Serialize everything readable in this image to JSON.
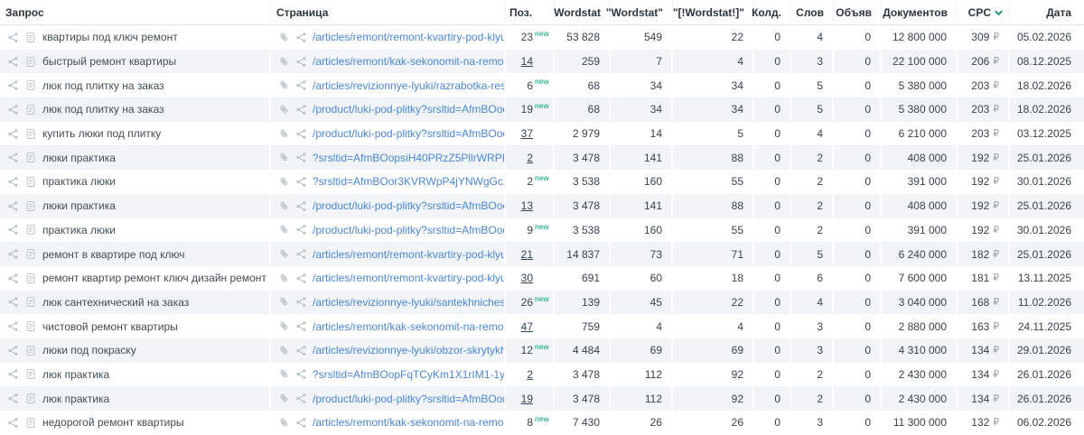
{
  "table": {
    "columns": {
      "query": "Запрос",
      "page": "Страница",
      "pos": "Поз.",
      "wordstat": "Wordstat",
      "wordstat_phrase": "\"Wordstat\"",
      "wordstat_exact": "\"[!Wordstat!]\"",
      "koldun": "Колд.",
      "words": "Слов",
      "ads": "Объяв",
      "documents": "Документов",
      "cpc": "CPC",
      "date": "Дата"
    },
    "sort": {
      "column": "cpc",
      "direction": "desc"
    },
    "new_badge_label": "new",
    "currency_symbol": "₽",
    "rows": [
      {
        "query": "квартиры под ключ ремонт",
        "page": "/articles/remont/remont-kvartiry-pod-klyu...",
        "pos": "23",
        "pos_state": "new",
        "wordstat": "53 828",
        "wordstat_phrase": "549",
        "wordstat_exact": "22",
        "koldun": "0",
        "words": "4",
        "ads": "0",
        "documents": "12 800 000",
        "cpc": "309",
        "date": "05.02.2026"
      },
      {
        "query": "быстрый ремонт квартиры",
        "page": "/articles/remont/kak-sekonomit-na-remo...",
        "pos": "14",
        "pos_state": "link",
        "wordstat": "259",
        "wordstat_phrase": "7",
        "wordstat_exact": "4",
        "koldun": "0",
        "words": "3",
        "ads": "0",
        "documents": "22 100 000",
        "cpc": "206",
        "date": "08.12.2025"
      },
      {
        "query": "люк под плитку на заказ",
        "page": "/articles/revizionnye-lyuki/razrabotka-res...",
        "pos": "6",
        "pos_state": "new",
        "wordstat": "68",
        "wordstat_phrase": "34",
        "wordstat_exact": "34",
        "koldun": "0",
        "words": "5",
        "ads": "0",
        "documents": "5 380 000",
        "cpc": "203",
        "date": "18.02.2026"
      },
      {
        "query": "люк под плитку на заказ",
        "page": "/product/luki-pod-plitky?srsltid=AfmBOoq...",
        "pos": "19",
        "pos_state": "new",
        "wordstat": "68",
        "wordstat_phrase": "34",
        "wordstat_exact": "34",
        "koldun": "0",
        "words": "5",
        "ads": "0",
        "documents": "5 380 000",
        "cpc": "203",
        "date": "18.02.2026"
      },
      {
        "query": "купить люки под плитку",
        "page": "/product/luki-pod-plitky?srsltid=AfmBOoc...",
        "pos": "37",
        "pos_state": "link",
        "wordstat": "2 979",
        "wordstat_phrase": "14",
        "wordstat_exact": "5",
        "koldun": "0",
        "words": "4",
        "ads": "0",
        "documents": "6 210 000",
        "cpc": "203",
        "date": "03.12.2025"
      },
      {
        "query": "люки практика",
        "page": "?srsltid=AfmBOopsiH40PRzZ5PllrWRPBV...",
        "pos": "2",
        "pos_state": "link",
        "wordstat": "3 478",
        "wordstat_phrase": "141",
        "wordstat_exact": "88",
        "koldun": "0",
        "words": "2",
        "ads": "0",
        "documents": "408 000",
        "cpc": "192",
        "date": "25.01.2026"
      },
      {
        "query": "практика люки",
        "page": "?srsltid=AfmBOor3KVRWpP4jYNWgGcXB...",
        "pos": "2",
        "pos_state": "new",
        "wordstat": "3 538",
        "wordstat_phrase": "160",
        "wordstat_exact": "55",
        "koldun": "0",
        "words": "2",
        "ads": "0",
        "documents": "391 000",
        "cpc": "192",
        "date": "30.01.2026"
      },
      {
        "query": "люки практика",
        "page": "/product/luki-pod-plitky?srsltid=AfmBOoc...",
        "pos": "13",
        "pos_state": "link",
        "wordstat": "3 478",
        "wordstat_phrase": "141",
        "wordstat_exact": "88",
        "koldun": "0",
        "words": "2",
        "ads": "0",
        "documents": "408 000",
        "cpc": "192",
        "date": "25.01.2026"
      },
      {
        "query": "практика люки",
        "page": "/product/luki-pod-plitky?srsltid=AfmBOoq...",
        "pos": "9",
        "pos_state": "new",
        "wordstat": "3 538",
        "wordstat_phrase": "160",
        "wordstat_exact": "55",
        "koldun": "0",
        "words": "2",
        "ads": "0",
        "documents": "391 000",
        "cpc": "192",
        "date": "30.01.2026"
      },
      {
        "query": "ремонт в квартире под ключ",
        "page": "/articles/remont/remont-kvartiry-pod-klyu...",
        "pos": "21",
        "pos_state": "link",
        "wordstat": "14 837",
        "wordstat_phrase": "73",
        "wordstat_exact": "71",
        "koldun": "0",
        "words": "5",
        "ads": "0",
        "documents": "6 240 000",
        "cpc": "182",
        "date": "25.01.2026"
      },
      {
        "query": "ремонт квартир ремонт ключ дизайн ремонт",
        "page": "/articles/remont/remont-kvartiry-pod-klyu...",
        "pos": "30",
        "pos_state": "link",
        "wordstat": "691",
        "wordstat_phrase": "60",
        "wordstat_exact": "18",
        "koldun": "0",
        "words": "6",
        "ads": "0",
        "documents": "7 600 000",
        "cpc": "181",
        "date": "13.11.2025"
      },
      {
        "query": "люк сантехнический на заказ",
        "page": "/articles/revizionnye-lyuki/santekhniches...",
        "pos": "26",
        "pos_state": "new",
        "wordstat": "139",
        "wordstat_phrase": "45",
        "wordstat_exact": "22",
        "koldun": "0",
        "words": "4",
        "ads": "0",
        "documents": "3 040 000",
        "cpc": "168",
        "date": "11.02.2026"
      },
      {
        "query": "чистовой ремонт квартиры",
        "page": "/articles/remont/kak-sekonomit-na-remo...",
        "pos": "47",
        "pos_state": "link",
        "wordstat": "759",
        "wordstat_phrase": "4",
        "wordstat_exact": "4",
        "koldun": "0",
        "words": "3",
        "ads": "0",
        "documents": "2 880 000",
        "cpc": "163",
        "date": "24.11.2025"
      },
      {
        "query": "люки под покраску",
        "page": "/articles/revizionnye-lyuki/obzor-skrytykh...",
        "pos": "12",
        "pos_state": "new",
        "wordstat": "4 484",
        "wordstat_phrase": "69",
        "wordstat_exact": "69",
        "koldun": "0",
        "words": "3",
        "ads": "0",
        "documents": "4 310 000",
        "cpc": "134",
        "date": "29.01.2026"
      },
      {
        "query": "люк практика",
        "page": "?srsltid=AfmBOopFqTCyKm1X1rIM1-1yIG...",
        "pos": "2",
        "pos_state": "link",
        "wordstat": "3 478",
        "wordstat_phrase": "112",
        "wordstat_exact": "92",
        "koldun": "0",
        "words": "2",
        "ads": "0",
        "documents": "2 430 000",
        "cpc": "134",
        "date": "26.01.2026"
      },
      {
        "query": "люк практика",
        "page": "/product/luki-pod-plitky?srsltid=AfmBOor-...",
        "pos": "19",
        "pos_state": "link",
        "wordstat": "3 478",
        "wordstat_phrase": "112",
        "wordstat_exact": "92",
        "koldun": "0",
        "words": "2",
        "ads": "0",
        "documents": "2 430 000",
        "cpc": "134",
        "date": "26.01.2026"
      },
      {
        "query": "недорогой ремонт квартиры",
        "page": "/articles/remont/kak-sekonomit-na-remo...",
        "pos": "8",
        "pos_state": "new",
        "wordstat": "7 430",
        "wordstat_phrase": "26",
        "wordstat_exact": "26",
        "koldun": "0",
        "words": "3",
        "ads": "0",
        "documents": "11 300 000",
        "cpc": "132",
        "date": "06.02.2026"
      }
    ]
  },
  "icons": {
    "row_left_1": "share-icon",
    "row_left_2": "document-icon",
    "page_left_1": "paperclip-icon",
    "page_left_2": "share-icon",
    "cpc_sort": "chevron-down-icon"
  },
  "colors": {
    "link_blue": "#4a86d8",
    "position_link": "#2f4459",
    "new_badge": "#00a27e",
    "alt_row_bg": "#f2f5f7",
    "icon_gray": "#b9c1c7",
    "header_text": "#2b3540",
    "sort_chevron": "#0d8f7b"
  }
}
